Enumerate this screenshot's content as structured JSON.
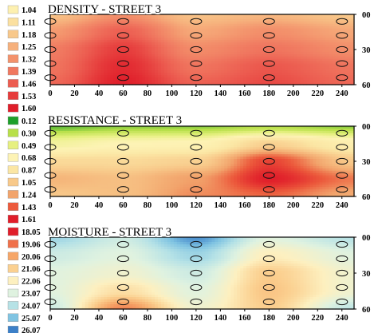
{
  "panels": [
    {
      "title": "DENSITY - STREET 3",
      "legend": {
        "labels": [
          "1.04",
          "1.11",
          "1.18",
          "1.25",
          "1.32",
          "1.39",
          "1.46",
          "1.53",
          "1.60"
        ],
        "colors": [
          "#fdf0b0",
          "#fbe0a0",
          "#f8c88a",
          "#f6b07c",
          "#f3926c",
          "#f07860",
          "#ec5c50",
          "#e63c3c",
          "#e01e2a"
        ]
      },
      "x_ticks": [
        "0",
        "20",
        "40",
        "60",
        "80",
        "100",
        "120",
        "140",
        "160",
        "180",
        "200",
        "220",
        "240"
      ],
      "y_ticks": [
        "00",
        "30",
        "60"
      ]
    },
    {
      "title": "RESISTANCE - STREET 3",
      "legend": {
        "labels": [
          "0.12",
          "0.30",
          "0.49",
          "0.68",
          "0.87",
          "1.05",
          "1.24",
          "1.43",
          "1.61"
        ],
        "colors": [
          "#1d9f2a",
          "#b8e04a",
          "#e6f080",
          "#fdf3b5",
          "#fbe6a4",
          "#f8c98a",
          "#f2a46c",
          "#ec5a3c",
          "#e01e2a"
        ]
      },
      "x_ticks": [
        "0",
        "20",
        "40",
        "60",
        "80",
        "100",
        "120",
        "140",
        "160",
        "180",
        "200",
        "220",
        "240"
      ],
      "y_ticks": [
        "00",
        "30",
        "60"
      ]
    },
    {
      "title": "MOISTURE - STREET 3",
      "legend": {
        "labels": [
          "18.05",
          "19.06",
          "20.06",
          "21.06",
          "22.06",
          "23.07",
          "24.07",
          "25.07",
          "26.07"
        ],
        "colors": [
          "#e01e2a",
          "#f0704a",
          "#f6a668",
          "#fbd090",
          "#fdf0c0",
          "#dff2e0",
          "#b6e2e6",
          "#80c4e2",
          "#3c80c8"
        ]
      },
      "x_ticks": [
        "0",
        "20",
        "40",
        "60",
        "80",
        "100",
        "120",
        "140",
        "160",
        "180",
        "200",
        "220",
        "240"
      ],
      "y_ticks": [
        "00",
        "30",
        "60"
      ]
    }
  ],
  "chart_data": [
    {
      "type": "heatmap",
      "title": "DENSITY - STREET 3",
      "xlim": [
        0,
        250
      ],
      "ylim": [
        0,
        60
      ],
      "x_ticks": [
        0,
        20,
        40,
        60,
        80,
        100,
        120,
        140,
        160,
        180,
        200,
        220,
        240
      ],
      "y_ticks": [
        0,
        30,
        60
      ],
      "legend_values": [
        1.04,
        1.11,
        1.18,
        1.25,
        1.32,
        1.39,
        1.46,
        1.53,
        1.6
      ],
      "sample_columns_x": [
        0,
        60,
        120,
        180,
        240
      ],
      "sample_depths_y": [
        6,
        18,
        30,
        42,
        54
      ],
      "field": {
        "x": [
          0,
          60,
          120,
          180,
          250
        ],
        "y": [
          0,
          15,
          30,
          45,
          60
        ],
        "values": [
          [
            1.2,
            1.33,
            1.2,
            1.23,
            1.18
          ],
          [
            1.3,
            1.45,
            1.27,
            1.33,
            1.27
          ],
          [
            1.38,
            1.53,
            1.34,
            1.4,
            1.33
          ],
          [
            1.4,
            1.57,
            1.4,
            1.47,
            1.4
          ],
          [
            1.43,
            1.6,
            1.45,
            1.5,
            1.43
          ]
        ]
      }
    },
    {
      "type": "heatmap",
      "title": "RESISTANCE - STREET 3",
      "xlim": [
        0,
        250
      ],
      "ylim": [
        0,
        60
      ],
      "x_ticks": [
        0,
        20,
        40,
        60,
        80,
        100,
        120,
        140,
        160,
        180,
        200,
        220,
        240
      ],
      "y_ticks": [
        0,
        30,
        60
      ],
      "legend_values": [
        0.12,
        0.3,
        0.49,
        0.68,
        0.87,
        1.05,
        1.24,
        1.43,
        1.61
      ],
      "sample_columns_x": [
        0,
        60,
        120,
        180,
        240
      ],
      "sample_depths_y": [
        6,
        18,
        30,
        42,
        54
      ],
      "field": {
        "x": [
          0,
          60,
          120,
          180,
          250
        ],
        "y": [
          0,
          15,
          30,
          45,
          60
        ],
        "values": [
          [
            0.2,
            0.25,
            0.25,
            0.3,
            0.25
          ],
          [
            0.6,
            0.68,
            0.7,
            1.0,
            0.75
          ],
          [
            0.95,
            0.95,
            1.0,
            1.5,
            1.05
          ],
          [
            1.15,
            1.1,
            1.25,
            1.61,
            1.35
          ],
          [
            1.05,
            1.1,
            1.3,
            1.4,
            1.2
          ]
        ]
      }
    },
    {
      "type": "heatmap",
      "title": "MOISTURE - STREET 3",
      "xlim": [
        0,
        250
      ],
      "ylim": [
        0,
        60
      ],
      "x_ticks": [
        0,
        20,
        40,
        60,
        80,
        100,
        120,
        140,
        160,
        180,
        200,
        220,
        240
      ],
      "y_ticks": [
        0,
        30,
        60
      ],
      "legend_values": [
        18.05,
        19.06,
        20.06,
        21.06,
        22.06,
        23.07,
        24.07,
        25.07,
        26.07
      ],
      "sample_columns_x": [
        0,
        60,
        120,
        180,
        240
      ],
      "sample_depths_y": [
        6,
        18,
        30,
        42,
        54
      ],
      "field": {
        "x": [
          0,
          60,
          120,
          180,
          250
        ],
        "y": [
          0,
          15,
          30,
          45,
          60
        ],
        "values": [
          [
            24.5,
            23.5,
            25.8,
            23.0,
            24.0
          ],
          [
            23.5,
            23.0,
            24.5,
            22.0,
            23.0
          ],
          [
            23.0,
            22.5,
            23.5,
            21.0,
            22.5
          ],
          [
            23.0,
            21.5,
            23.0,
            20.8,
            22.5
          ],
          [
            23.5,
            19.5,
            22.5,
            21.0,
            23.8
          ]
        ]
      }
    }
  ]
}
